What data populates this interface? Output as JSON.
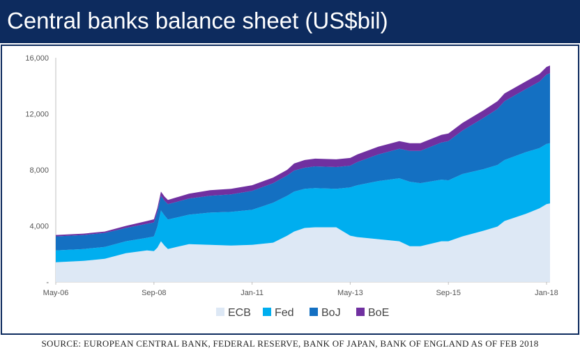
{
  "header": {
    "title": "Central banks balance sheet (US$bil)"
  },
  "footer": {
    "source": "SOURCE: EUROPEAN CENTRAL BANK, FEDERAL RESERVE, BANK OF JAPAN, BANK OF ENGLAND AS OF FEB 2018"
  },
  "chart_data": {
    "type": "area",
    "stacked": true,
    "title": "Central banks balance sheet (US$bil)",
    "xlabel": "",
    "ylabel": "",
    "ylim": [
      0,
      16000
    ],
    "y_ticks": [
      0,
      4000,
      8000,
      12000,
      16000
    ],
    "y_tick_labels": [
      "-",
      "4,000",
      "8,000",
      "12,000",
      "16,000"
    ],
    "x_range": [
      2006.333,
      2018.083
    ],
    "x_ticks": [
      2006.333,
      2008.667,
      2011.0,
      2013.333,
      2015.667,
      2018.0
    ],
    "x_tick_labels": [
      "May-06",
      "Sep-08",
      "Jan-11",
      "May-13",
      "Sep-15",
      "Jan-18"
    ],
    "grid": false,
    "legend_position": "bottom",
    "x": [
      2006.333,
      2007.0,
      2007.5,
      2008.0,
      2008.5,
      2008.667,
      2008.75,
      2008.833,
      2008.917,
      2009.0,
      2009.5,
      2010.0,
      2010.5,
      2011.0,
      2011.5,
      2011.833,
      2012.0,
      2012.25,
      2012.5,
      2013.0,
      2013.333,
      2013.5,
      2014.0,
      2014.5,
      2014.75,
      2015.0,
      2015.5,
      2015.667,
      2016.0,
      2016.5,
      2016.833,
      2017.0,
      2017.5,
      2017.833,
      2018.0,
      2018.083
    ],
    "series": [
      {
        "name": "ECB",
        "color": "#dde8f5",
        "values": [
          1400,
          1500,
          1650,
          2050,
          2250,
          2200,
          2450,
          2900,
          2600,
          2350,
          2700,
          2650,
          2600,
          2650,
          2800,
          3300,
          3600,
          3850,
          3900,
          3900,
          3300,
          3200,
          3050,
          2900,
          2550,
          2550,
          2900,
          2900,
          3250,
          3650,
          3950,
          4350,
          4850,
          5250,
          5550,
          5600
        ]
      },
      {
        "name": "Fed",
        "color": "#00aeef",
        "values": [
          850,
          850,
          850,
          850,
          900,
          1050,
          1500,
          2200,
          2150,
          2100,
          2100,
          2300,
          2400,
          2500,
          2850,
          2850,
          2850,
          2800,
          2800,
          2750,
          3450,
          3700,
          4150,
          4500,
          4600,
          4500,
          4400,
          4350,
          4450,
          4400,
          4400,
          4350,
          4400,
          4300,
          4300,
          4300
        ]
      },
      {
        "name": "BoJ",
        "color": "#1470c2",
        "values": [
          1000,
          1000,
          1000,
          950,
          1000,
          1000,
          1050,
          1050,
          1050,
          1100,
          1150,
          1200,
          1250,
          1350,
          1400,
          1450,
          1500,
          1500,
          1550,
          1550,
          1550,
          1650,
          1900,
          2100,
          2200,
          2300,
          2650,
          2800,
          3100,
          3650,
          4000,
          4200,
          4500,
          4750,
          4950,
          5000
        ]
      },
      {
        "name": "BoE",
        "color": "#7030a0",
        "values": [
          100,
          100,
          100,
          150,
          200,
          220,
          280,
          300,
          300,
          300,
          350,
          400,
          400,
          400,
          400,
          400,
          500,
          550,
          550,
          550,
          550,
          550,
          550,
          550,
          550,
          550,
          550,
          550,
          550,
          550,
          550,
          550,
          550,
          550,
          550,
          550
        ]
      }
    ]
  }
}
